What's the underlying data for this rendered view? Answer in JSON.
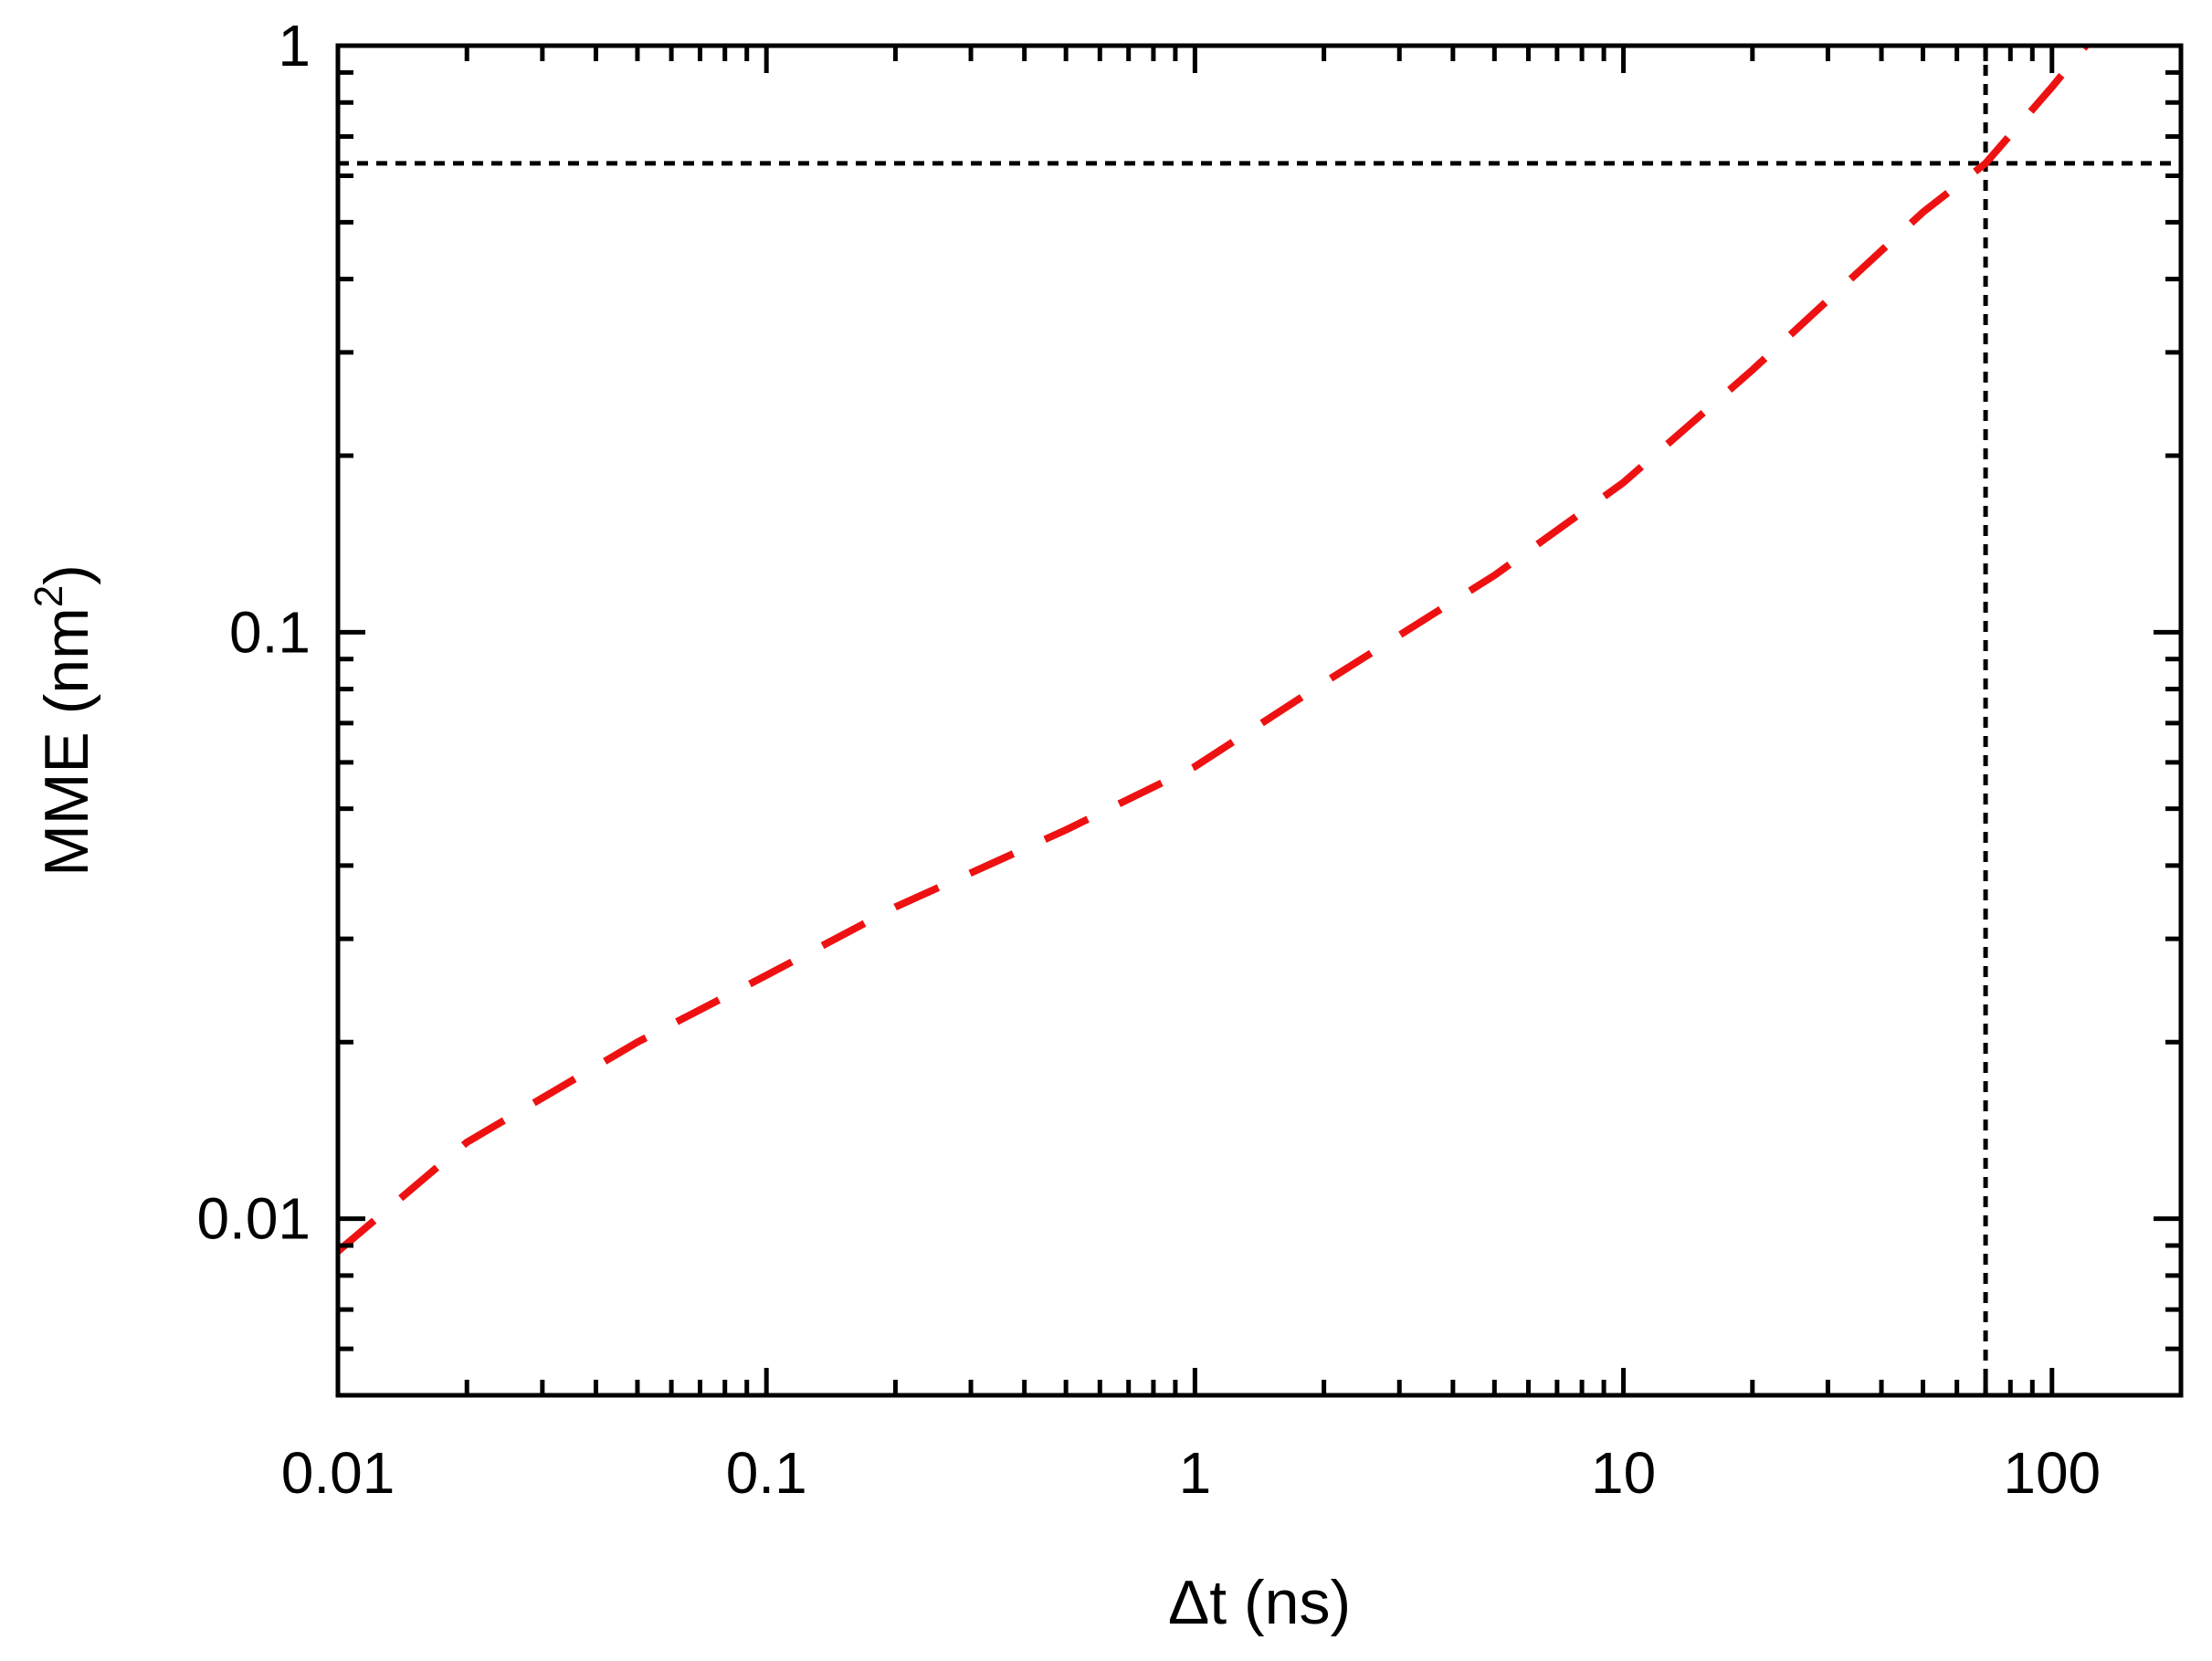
{
  "chart_data": {
    "type": "line",
    "xlabel": "Δt (ns)",
    "ylabel_main": "MME (nm",
    "ylabel_sup": "2",
    "ylabel_close": ")",
    "xscale": "log",
    "yscale": "log",
    "xlim": [
      0.01,
      200
    ],
    "ylim": [
      0.005,
      1
    ],
    "x_ticks": [
      {
        "value": 0.01,
        "label": "0.01"
      },
      {
        "value": 0.1,
        "label": "0.1"
      },
      {
        "value": 1,
        "label": "1"
      },
      {
        "value": 10,
        "label": "10"
      },
      {
        "value": 100,
        "label": "100"
      }
    ],
    "y_ticks": [
      {
        "value": 0.01,
        "label": "0.01"
      },
      {
        "value": 0.1,
        "label": "0.1"
      },
      {
        "value": 1,
        "label": "1"
      }
    ],
    "grid": false,
    "series": [
      {
        "color": "#ee1111",
        "style": "dashed",
        "x": [
          0.01,
          0.02,
          0.05,
          0.1,
          0.2,
          0.5,
          1,
          2,
          5,
          10,
          20,
          50,
          70,
          100,
          120
        ],
        "y": [
          0.0088,
          0.0135,
          0.02,
          0.026,
          0.034,
          0.046,
          0.059,
          0.082,
          0.125,
          0.18,
          0.28,
          0.52,
          0.63,
          0.85,
          1.0
        ]
      }
    ],
    "reference_lines": [
      {
        "orientation": "horizontal",
        "value": 0.63,
        "color": "#000000",
        "style": "dotted"
      },
      {
        "orientation": "vertical",
        "value": 70,
        "color": "#000000",
        "style": "dotted"
      }
    ]
  }
}
